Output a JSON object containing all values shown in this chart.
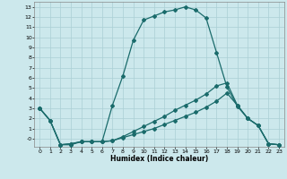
{
  "xlabel": "Humidex (Indice chaleur)",
  "bg_color": "#cce8ec",
  "grid_color": "#aacfd4",
  "line_color": "#1a6b6b",
  "xlim": [
    -0.5,
    23.5
  ],
  "ylim": [
    -0.8,
    13.5
  ],
  "xticks": [
    0,
    1,
    2,
    3,
    4,
    5,
    6,
    7,
    8,
    9,
    10,
    11,
    12,
    13,
    14,
    15,
    16,
    17,
    18,
    19,
    20,
    21,
    22,
    23
  ],
  "yticks": [
    0,
    1,
    2,
    3,
    4,
    5,
    6,
    7,
    8,
    9,
    10,
    11,
    12,
    13
  ],
  "ytick_labels": [
    "-0",
    "1",
    "2",
    "3",
    "4",
    "5",
    "6",
    "7",
    "8",
    "9",
    "10",
    "11",
    "12",
    "13"
  ],
  "line1_x": [
    0,
    1,
    2,
    3,
    4,
    5,
    6,
    7,
    8,
    9,
    10,
    11,
    12,
    13,
    14,
    15,
    16,
    17,
    18,
    19,
    20,
    21,
    22,
    23
  ],
  "line1_y": [
    3.0,
    1.8,
    -0.6,
    -0.6,
    -0.3,
    -0.3,
    -0.3,
    3.3,
    6.2,
    9.7,
    11.7,
    12.1,
    12.5,
    12.7,
    13.0,
    12.7,
    11.9,
    8.5,
    5.1,
    3.2,
    2.0,
    1.3,
    -0.5,
    -0.6
  ],
  "line2_x": [
    0,
    1,
    2,
    3,
    4,
    5,
    6,
    7,
    8,
    9,
    10,
    11,
    12,
    13,
    14,
    15,
    16,
    17,
    18,
    19,
    20,
    21,
    22,
    23
  ],
  "line2_y": [
    3.0,
    1.8,
    -0.6,
    -0.5,
    -0.3,
    -0.3,
    -0.3,
    -0.2,
    0.2,
    0.7,
    1.2,
    1.7,
    2.2,
    2.8,
    3.3,
    3.8,
    4.4,
    5.2,
    5.5,
    3.3,
    2.0,
    1.3,
    -0.5,
    -0.6
  ],
  "line3_x": [
    0,
    1,
    2,
    3,
    4,
    5,
    6,
    7,
    8,
    9,
    10,
    11,
    12,
    13,
    14,
    15,
    16,
    17,
    18,
    19,
    20,
    21,
    22,
    23
  ],
  "line3_y": [
    3.0,
    1.8,
    -0.6,
    -0.5,
    -0.3,
    -0.3,
    -0.3,
    -0.2,
    0.1,
    0.4,
    0.7,
    1.0,
    1.4,
    1.8,
    2.2,
    2.6,
    3.1,
    3.7,
    4.5,
    3.3,
    2.0,
    1.3,
    -0.5,
    -0.6
  ]
}
